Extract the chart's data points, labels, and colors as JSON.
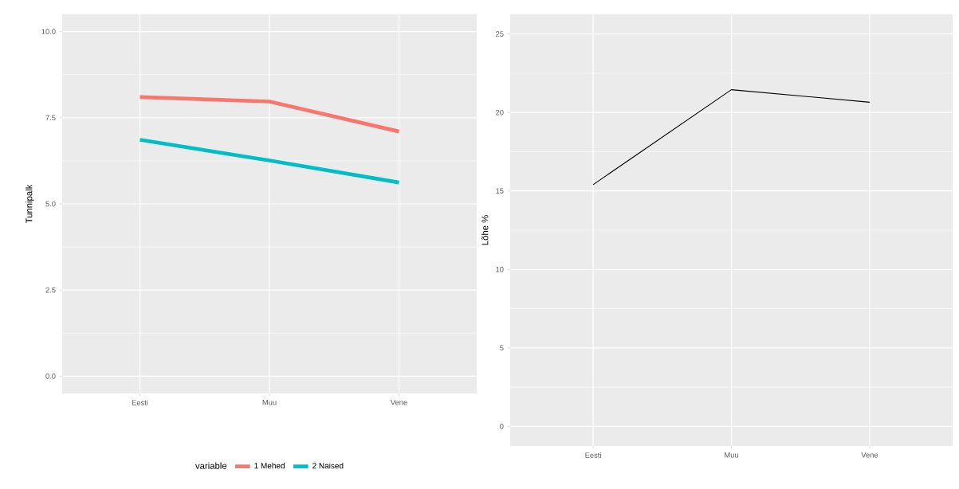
{
  "chart_data": [
    {
      "type": "line",
      "categories": [
        "Eesti",
        "Muu",
        "Vene"
      ],
      "ylabel": "Tunnipalk",
      "ylim": [
        -0.5,
        10.5
      ],
      "yticks": [
        {
          "value": 0,
          "label": "0.0"
        },
        {
          "value": 2.5,
          "label": "2.5"
        },
        {
          "value": 5,
          "label": "5.0"
        },
        {
          "value": 7.5,
          "label": "7.5"
        },
        {
          "value": 10,
          "label": "10.0"
        }
      ],
      "grid": true,
      "legend": "bottom",
      "legend_title": "variable",
      "series": [
        {
          "name": "1 Mehed",
          "color": "#f8766d",
          "values": [
            8.1,
            7.97,
            7.1
          ]
        },
        {
          "name": "2 Naised",
          "color": "#00bfc4",
          "values": [
            6.86,
            6.26,
            5.62
          ]
        }
      ]
    },
    {
      "type": "line",
      "categories": [
        "Eesti",
        "Muu",
        "Vene"
      ],
      "ylabel": "Lõhe %",
      "ylim": [
        -1.25,
        26.25
      ],
      "yticks": [
        0,
        5,
        10,
        15,
        20,
        25
      ],
      "grid": true,
      "color": "#000000",
      "values": [
        15.4,
        21.45,
        20.65
      ]
    }
  ]
}
